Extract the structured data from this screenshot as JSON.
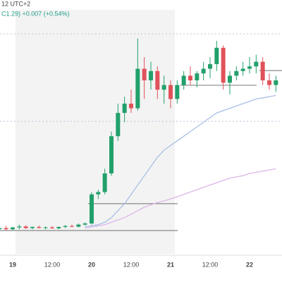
{
  "chart_data": {
    "type": "candlestick",
    "title": "12 UTC+2",
    "subtitle": "C1.29) +0.007 (+0.54%)",
    "categories": [
      null,
      null,
      "19",
      null,
      null,
      null,
      null,
      null,
      "12:00",
      null,
      null,
      null,
      null,
      null,
      "20",
      null,
      null,
      null,
      null,
      null,
      "12:00",
      null,
      null,
      null,
      null,
      null,
      "21",
      null,
      null,
      null,
      null,
      null,
      "12:00",
      null,
      null,
      null,
      null,
      null,
      "22",
      null,
      null,
      null,
      null
    ],
    "open": [
      6,
      6.5,
      6,
      6.8,
      7.2,
      6.5,
      7,
      6.6,
      6.8,
      6.4,
      7,
      7.4,
      7.1,
      8,
      8.5,
      21,
      22,
      30,
      46,
      56,
      60,
      58,
      75,
      70,
      74,
      66,
      68,
      62,
      68,
      72,
      70,
      73,
      75,
      77,
      84,
      69,
      72,
      74,
      75,
      76,
      78,
      70,
      68
    ],
    "high": [
      7,
      7.5,
      7,
      8,
      7.8,
      7.2,
      7.6,
      7.3,
      7.4,
      7.2,
      7.8,
      8,
      8.5,
      9,
      22,
      23,
      32,
      48,
      60,
      63,
      66,
      88,
      80,
      78,
      76,
      72,
      70,
      70,
      74,
      76,
      74,
      78,
      80,
      87,
      85,
      74,
      76,
      78,
      80,
      81,
      80,
      73,
      72
    ],
    "low": [
      5,
      5.5,
      5.5,
      6,
      6.2,
      6,
      6.3,
      6,
      6.2,
      6,
      6.5,
      6.8,
      6.8,
      7.5,
      8,
      19,
      21,
      29,
      44,
      52,
      56,
      57,
      62,
      66,
      62,
      60,
      58,
      60,
      66,
      68,
      67,
      70,
      71,
      74,
      66,
      64,
      70,
      72,
      73,
      73,
      68,
      66,
      65
    ],
    "close": [
      6.5,
      6,
      6.8,
      7.2,
      6.5,
      7,
      6.6,
      6.8,
      6.4,
      7,
      7.4,
      7.1,
      8,
      8.5,
      21,
      22,
      30,
      46,
      56,
      60,
      58,
      75,
      70,
      74,
      66,
      68,
      62,
      68,
      72,
      70,
      73,
      75,
      77,
      84,
      69,
      72,
      74,
      75,
      76,
      78,
      70,
      68,
      70
    ],
    "up_color": "#22a06b",
    "down_color": "#e0525a",
    "series": [
      {
        "color": "#a9bfe6",
        "values": [
          null,
          null,
          null,
          null,
          null,
          null,
          null,
          null,
          null,
          null,
          null,
          null,
          null,
          7,
          7.5,
          8,
          9,
          11,
          14,
          17,
          21,
          25,
          29,
          33,
          37,
          40,
          42,
          44,
          46,
          48,
          50,
          52,
          54,
          56,
          57,
          58,
          59,
          60,
          61,
          62,
          62.5,
          63,
          63.5
        ]
      },
      {
        "color": "#dcb6e8",
        "values": [
          null,
          null,
          null,
          null,
          null,
          null,
          null,
          null,
          null,
          null,
          null,
          null,
          null,
          6.5,
          7,
          7.5,
          8,
          9,
          10,
          11,
          12.5,
          14,
          15.5,
          16.5,
          17.5,
          18.2,
          19,
          20,
          21,
          22,
          23,
          24,
          25,
          26,
          27,
          28,
          28.5,
          29,
          30,
          30.5,
          31,
          31.5,
          32
        ]
      }
    ],
    "levels": [
      {
        "value": 5.45,
        "start": 0,
        "end": 26
      },
      {
        "value": 17,
        "start": 14,
        "end": 26
      },
      {
        "value": 67.9,
        "start": 28,
        "end": 38
      },
      {
        "value": 74.2,
        "start": 40,
        "end": 42
      }
    ],
    "dotted_levels": [
      90,
      52.4
    ],
    "ylim": [
      0,
      100
    ]
  }
}
